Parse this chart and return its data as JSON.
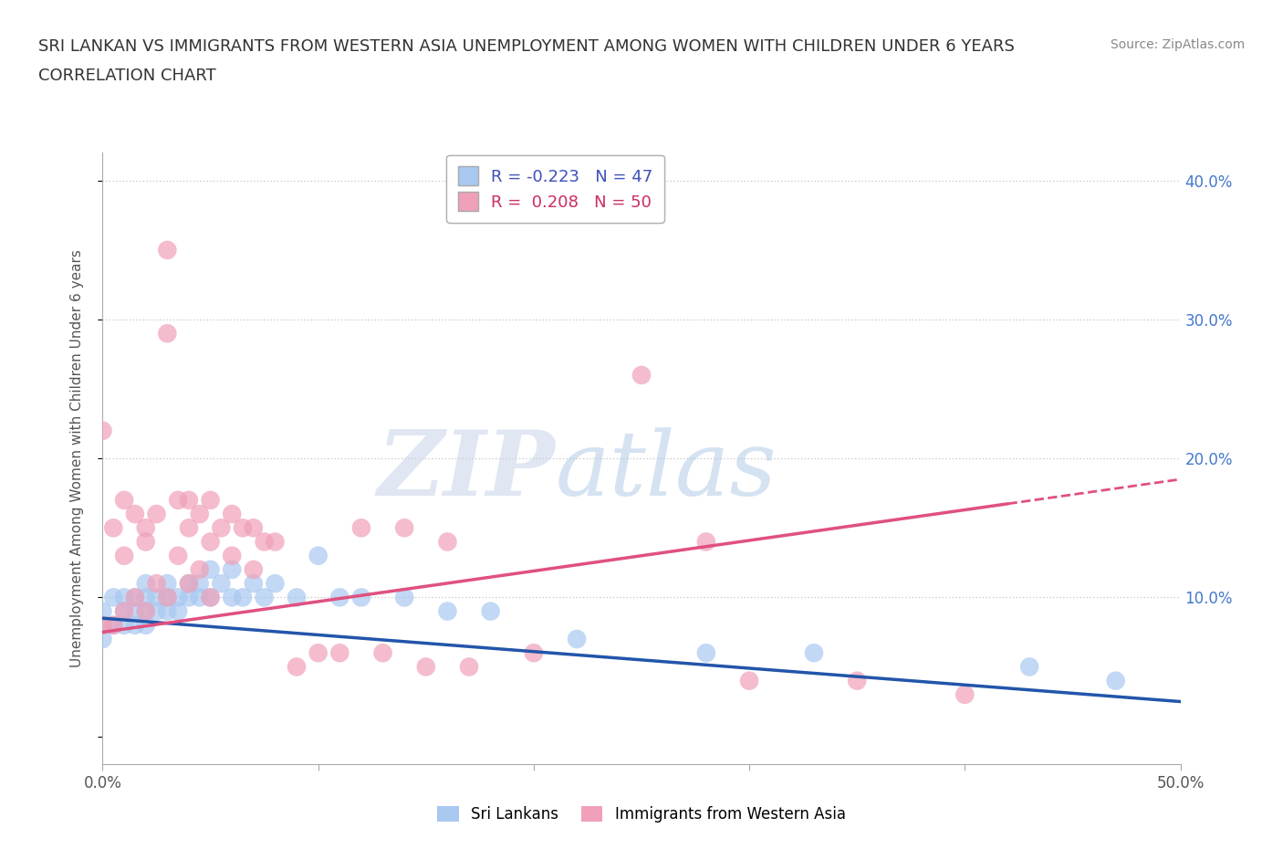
{
  "title_line1": "SRI LANKAN VS IMMIGRANTS FROM WESTERN ASIA UNEMPLOYMENT AMONG WOMEN WITH CHILDREN UNDER 6 YEARS",
  "title_line2": "CORRELATION CHART",
  "source": "Source: ZipAtlas.com",
  "ylabel_label": "Unemployment Among Women with Children Under 6 years",
  "xlim": [
    0.0,
    0.5
  ],
  "ylim": [
    -0.02,
    0.42
  ],
  "sri_lankans": {
    "label": "Sri Lankans",
    "R": -0.223,
    "N": 47,
    "color": "#A8C8F0",
    "line_color": "#2255AA",
    "x": [
      0.0,
      0.0,
      0.0,
      0.005,
      0.005,
      0.01,
      0.01,
      0.01,
      0.015,
      0.015,
      0.015,
      0.02,
      0.02,
      0.02,
      0.02,
      0.025,
      0.025,
      0.03,
      0.03,
      0.03,
      0.035,
      0.035,
      0.04,
      0.04,
      0.045,
      0.045,
      0.05,
      0.05,
      0.055,
      0.06,
      0.06,
      0.065,
      0.07,
      0.075,
      0.08,
      0.09,
      0.1,
      0.11,
      0.12,
      0.14,
      0.16,
      0.18,
      0.22,
      0.28,
      0.33,
      0.43,
      0.47
    ],
    "y": [
      0.09,
      0.08,
      0.07,
      0.1,
      0.08,
      0.1,
      0.09,
      0.08,
      0.1,
      0.09,
      0.08,
      0.11,
      0.1,
      0.09,
      0.08,
      0.1,
      0.09,
      0.11,
      0.1,
      0.09,
      0.1,
      0.09,
      0.11,
      0.1,
      0.11,
      0.1,
      0.12,
      0.1,
      0.11,
      0.12,
      0.1,
      0.1,
      0.11,
      0.1,
      0.11,
      0.1,
      0.13,
      0.1,
      0.1,
      0.1,
      0.09,
      0.09,
      0.07,
      0.06,
      0.06,
      0.05,
      0.04
    ],
    "trend_x": [
      0.0,
      0.5
    ],
    "trend_y": [
      0.085,
      0.025
    ]
  },
  "western_asia": {
    "label": "Immigrants from Western Asia",
    "R": 0.208,
    "N": 50,
    "color": "#F0A0B8",
    "line_color": "#E05080",
    "x": [
      0.0,
      0.0,
      0.005,
      0.005,
      0.01,
      0.01,
      0.01,
      0.015,
      0.015,
      0.02,
      0.02,
      0.02,
      0.025,
      0.025,
      0.03,
      0.03,
      0.03,
      0.035,
      0.035,
      0.04,
      0.04,
      0.04,
      0.045,
      0.045,
      0.05,
      0.05,
      0.05,
      0.055,
      0.06,
      0.06,
      0.065,
      0.07,
      0.07,
      0.075,
      0.08,
      0.09,
      0.1,
      0.11,
      0.12,
      0.13,
      0.14,
      0.15,
      0.16,
      0.17,
      0.2,
      0.25,
      0.28,
      0.3,
      0.35,
      0.4
    ],
    "y": [
      0.22,
      0.08,
      0.15,
      0.08,
      0.17,
      0.13,
      0.09,
      0.16,
      0.1,
      0.15,
      0.14,
      0.09,
      0.16,
      0.11,
      0.35,
      0.29,
      0.1,
      0.17,
      0.13,
      0.17,
      0.15,
      0.11,
      0.16,
      0.12,
      0.17,
      0.14,
      0.1,
      0.15,
      0.16,
      0.13,
      0.15,
      0.15,
      0.12,
      0.14,
      0.14,
      0.05,
      0.06,
      0.06,
      0.15,
      0.06,
      0.15,
      0.05,
      0.14,
      0.05,
      0.06,
      0.26,
      0.14,
      0.04,
      0.04,
      0.03
    ],
    "trend_x": [
      0.0,
      0.5
    ],
    "trend_y": [
      0.075,
      0.185
    ]
  },
  "background_color": "#FFFFFF",
  "watermark_zip": "ZIP",
  "watermark_atlas": "atlas",
  "grid_color": "#CCCCCC"
}
